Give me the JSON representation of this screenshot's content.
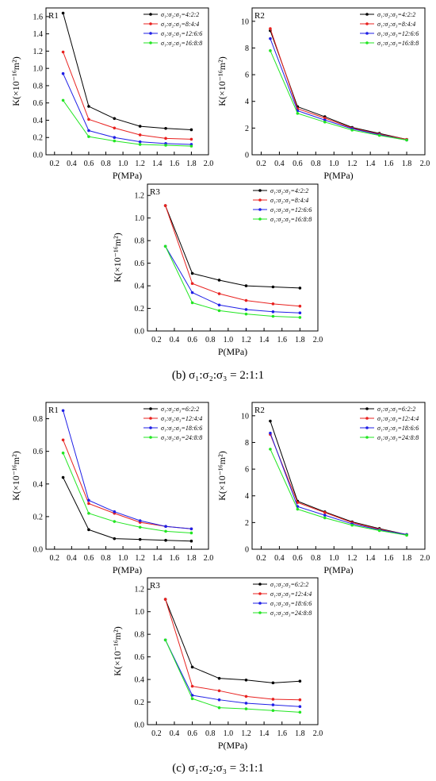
{
  "captions": [
    {
      "label": "(b)",
      "text": "σ₁:σ₂:σ₃ = 2:1:1"
    },
    {
      "label": "(c)",
      "text": "σ₁:σ₂:σ₃ = 3:1:1"
    }
  ],
  "colors": {
    "black": "#000000",
    "red": "#e8211f",
    "blue": "#1f1fe6",
    "green": "#22e622"
  },
  "chart_data": [
    {
      "type": "line",
      "panel": "R1",
      "group": "b",
      "xlabel": "P(MPa)",
      "ylabel": "K(×10⁻¹⁶m²)",
      "xlim": [
        0.1,
        2.0
      ],
      "ylim": [
        0,
        1.7
      ],
      "xticks": [
        0.2,
        0.4,
        0.6,
        0.8,
        1.0,
        1.2,
        1.4,
        1.6,
        1.8,
        2.0
      ],
      "yticks": [
        0.0,
        0.2,
        0.4,
        0.6,
        0.8,
        1.0,
        1.2,
        1.4,
        1.6
      ],
      "x": [
        0.3,
        0.6,
        0.9,
        1.2,
        1.5,
        1.8
      ],
      "legend_position": "top-right",
      "series": [
        {
          "name": "σ₁:σ₂:σ₃=4:2:2",
          "color": "#000000",
          "values": [
            1.64,
            0.56,
            0.42,
            0.33,
            0.305,
            0.29
          ]
        },
        {
          "name": "σ₁:σ₂:σ₃=8:4:4",
          "color": "#e8211f",
          "values": [
            1.19,
            0.41,
            0.31,
            0.23,
            0.19,
            0.18
          ]
        },
        {
          "name": "σ₁:σ₂:σ₃=12:6:6",
          "color": "#1f1fe6",
          "values": [
            0.94,
            0.28,
            0.2,
            0.15,
            0.13,
            0.12
          ]
        },
        {
          "name": "σ₁:σ₂:σ₃=16:8:8",
          "color": "#22e622",
          "values": [
            0.63,
            0.21,
            0.16,
            0.12,
            0.11,
            0.1
          ]
        }
      ]
    },
    {
      "type": "line",
      "panel": "R2",
      "group": "b",
      "xlabel": "P(MPa)",
      "ylabel": "K(×10⁻¹⁶m²)",
      "xlim": [
        0.1,
        2.0
      ],
      "ylim": [
        0,
        11
      ],
      "xticks": [
        0.2,
        0.4,
        0.6,
        0.8,
        1.0,
        1.2,
        1.4,
        1.6,
        1.8,
        2.0
      ],
      "yticks": [
        0,
        2,
        4,
        6,
        8,
        10
      ],
      "x": [
        0.3,
        0.6,
        0.9,
        1.2,
        1.5,
        1.8
      ],
      "legend_position": "top-right",
      "series": [
        {
          "name": "σ₁:σ₂:σ₃=4:2:2",
          "color": "#000000",
          "values": [
            9.3,
            3.6,
            2.85,
            2.05,
            1.6,
            1.15
          ]
        },
        {
          "name": "σ₁:σ₂:σ₃=8:4:4",
          "color": "#e8211f",
          "values": [
            9.45,
            3.45,
            2.75,
            2.0,
            1.55,
            1.15
          ]
        },
        {
          "name": "σ₁:σ₂:σ₃=12:6:6",
          "color": "#1f1fe6",
          "values": [
            8.7,
            3.3,
            2.6,
            1.95,
            1.5,
            1.1
          ]
        },
        {
          "name": "σ₁:σ₂:σ₃=16:8:8",
          "color": "#22e622",
          "values": [
            7.8,
            3.1,
            2.45,
            1.85,
            1.45,
            1.1
          ]
        }
      ]
    },
    {
      "type": "line",
      "panel": "R3",
      "group": "b",
      "xlabel": "P(MPa)",
      "ylabel": "K(×10⁻¹⁶m²)",
      "xlim": [
        0.1,
        2.0
      ],
      "ylim": [
        0,
        1.3
      ],
      "xticks": [
        0.2,
        0.4,
        0.6,
        0.8,
        1.0,
        1.2,
        1.4,
        1.6,
        1.8,
        2.0
      ],
      "yticks": [
        0.0,
        0.2,
        0.4,
        0.6,
        0.8,
        1.0,
        1.2
      ],
      "x": [
        0.3,
        0.6,
        0.9,
        1.2,
        1.5,
        1.8
      ],
      "legend_position": "top-right",
      "series": [
        {
          "name": "σ₁:σ₂:σ₃=4:2:2",
          "color": "#000000",
          "values": [
            1.11,
            0.51,
            0.45,
            0.4,
            0.39,
            0.38
          ]
        },
        {
          "name": "σ₁:σ₂:σ₃=8:4:4",
          "color": "#e8211f",
          "values": [
            1.11,
            0.42,
            0.33,
            0.27,
            0.24,
            0.22
          ]
        },
        {
          "name": "σ₁:σ₂:σ₃=12:6:6",
          "color": "#1f1fe6",
          "values": [
            0.75,
            0.34,
            0.23,
            0.19,
            0.17,
            0.16
          ]
        },
        {
          "name": "σ₁:σ₂:σ₃=16:8:8",
          "color": "#22e622",
          "values": [
            0.75,
            0.25,
            0.18,
            0.15,
            0.13,
            0.12
          ]
        }
      ]
    },
    {
      "type": "line",
      "panel": "R1",
      "group": "c",
      "xlabel": "P(MPa)",
      "ylabel": "K(×10⁻¹⁶m²)",
      "xlim": [
        0.1,
        2.0
      ],
      "ylim": [
        0,
        0.9
      ],
      "xticks": [
        0.2,
        0.4,
        0.6,
        0.8,
        1.0,
        1.2,
        1.4,
        1.6,
        1.8,
        2.0
      ],
      "yticks": [
        0.0,
        0.2,
        0.4,
        0.6,
        0.8
      ],
      "x": [
        0.3,
        0.6,
        0.9,
        1.2,
        1.5,
        1.8
      ],
      "legend_position": "top-right",
      "series": [
        {
          "name": "σ₁:σ₂:σ₃=6:2:2",
          "color": "#000000",
          "values": [
            0.44,
            0.12,
            0.065,
            0.06,
            0.055,
            0.05
          ]
        },
        {
          "name": "σ₁:σ₂:σ₃=12:4:4",
          "color": "#e8211f",
          "values": [
            0.67,
            0.28,
            0.22,
            0.165,
            0.14,
            0.125
          ]
        },
        {
          "name": "σ₁:σ₂:σ₃=18:6:6",
          "color": "#1f1fe6",
          "values": [
            0.85,
            0.3,
            0.23,
            0.175,
            0.14,
            0.125
          ]
        },
        {
          "name": "σ₁:σ₂:σ₃=24:8:8",
          "color": "#22e622",
          "values": [
            0.59,
            0.22,
            0.17,
            0.135,
            0.11,
            0.1
          ]
        }
      ]
    },
    {
      "type": "line",
      "panel": "R2",
      "group": "c",
      "xlabel": "P(MPa)",
      "ylabel": "K(×10⁻¹⁶m²)",
      "xlim": [
        0.1,
        2.0
      ],
      "ylim": [
        0,
        11
      ],
      "xticks": [
        0.2,
        0.4,
        0.6,
        0.8,
        1.0,
        1.2,
        1.4,
        1.6,
        1.8,
        2.0
      ],
      "yticks": [
        0,
        2,
        4,
        6,
        8,
        10
      ],
      "x": [
        0.3,
        0.6,
        0.9,
        1.2,
        1.5,
        1.8
      ],
      "legend_position": "top-right",
      "series": [
        {
          "name": "σ₁:σ₂:σ₃=6:2:2",
          "color": "#000000",
          "values": [
            9.6,
            3.6,
            2.8,
            2.05,
            1.55,
            1.1
          ]
        },
        {
          "name": "σ₁:σ₂:σ₃=12:4:4",
          "color": "#e8211f",
          "values": [
            8.6,
            3.5,
            2.75,
            2.0,
            1.5,
            1.1
          ]
        },
        {
          "name": "σ₁:σ₂:σ₃=18:6:6",
          "color": "#1f1fe6",
          "values": [
            8.7,
            3.2,
            2.55,
            1.9,
            1.45,
            1.1
          ]
        },
        {
          "name": "σ₁:σ₂:σ₃=24:8:8",
          "color": "#22e622",
          "values": [
            7.5,
            3.0,
            2.35,
            1.8,
            1.4,
            1.05
          ]
        }
      ]
    },
    {
      "type": "line",
      "panel": "R3",
      "group": "c",
      "xlabel": "P(MPa)",
      "ylabel": "K(×10⁻¹⁶m²)",
      "xlim": [
        0.1,
        2.0
      ],
      "ylim": [
        0,
        1.3
      ],
      "xticks": [
        0.2,
        0.4,
        0.6,
        0.8,
        1.0,
        1.2,
        1.4,
        1.6,
        1.8,
        2.0
      ],
      "yticks": [
        0.0,
        0.2,
        0.4,
        0.6,
        0.8,
        1.0,
        1.2
      ],
      "x": [
        0.3,
        0.6,
        0.9,
        1.2,
        1.5,
        1.8
      ],
      "legend_position": "top-right",
      "series": [
        {
          "name": "σ₁:σ₂:σ₃=6:2:2",
          "color": "#000000",
          "values": [
            1.11,
            0.51,
            0.41,
            0.395,
            0.37,
            0.385
          ]
        },
        {
          "name": "σ₁:σ₂:σ₃=12:4:4",
          "color": "#e8211f",
          "values": [
            1.11,
            0.34,
            0.3,
            0.25,
            0.225,
            0.22
          ]
        },
        {
          "name": "σ₁:σ₂:σ₃=18:6:6",
          "color": "#1f1fe6",
          "values": [
            0.75,
            0.26,
            0.22,
            0.19,
            0.175,
            0.16
          ]
        },
        {
          "name": "σ₁:σ₂:σ₃=24:8:8",
          "color": "#22e622",
          "values": [
            0.75,
            0.23,
            0.15,
            0.14,
            0.125,
            0.11
          ]
        }
      ]
    }
  ]
}
